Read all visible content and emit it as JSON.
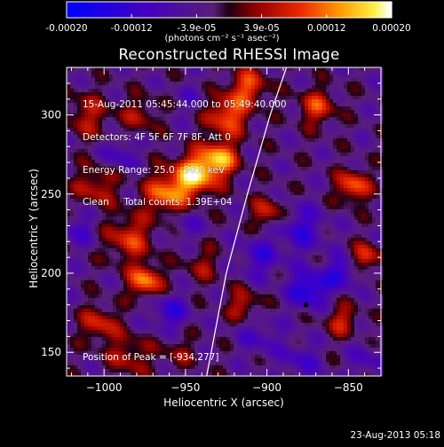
{
  "chart_data": {
    "type": "heatmap",
    "title": "Reconstructed RHESSI Image",
    "xlabel": "Heliocentric X (arcsec)",
    "ylabel": "Heliocentric Y (arcsec)",
    "xlim": [
      -1023,
      -830
    ],
    "ylim": [
      135,
      330
    ],
    "xticks": [
      -1000,
      -950,
      -900,
      -850
    ],
    "yticks": [
      150,
      200,
      250,
      300
    ],
    "colorbar": {
      "ticks": [
        "-0.00020",
        "-0.00012",
        "-3.9e-05",
        "3.9e-05",
        "0.00012",
        "0.00020"
      ],
      "units": "(photons cm⁻² s⁻¹ asec⁻²)",
      "range": [
        -0.0002,
        0.0002
      ]
    },
    "info_lines": [
      "15-Aug-2011 05:45:44.000 to 05:49:40.000",
      "Detectors: 4F 5F 6F 7F 8F, Att 0",
      "Energy Range: 25.0 - 50.0 keV",
      "Clean     Total counts: 1.39E+04"
    ],
    "peak_label": "Position of Peak = [-934,277]",
    "peak": [
      -934,
      277
    ],
    "marker": [
      -876,
      180
    ],
    "limb": [
      [
        -937,
        135
      ],
      [
        -925,
        200
      ],
      [
        -912,
        250
      ],
      [
        -898,
        300
      ],
      [
        -888,
        330
      ]
    ],
    "blobs": [
      {
        "x": -945,
        "y": 262,
        "v": 0.00019,
        "s": 9
      },
      {
        "x": -930,
        "y": 272,
        "v": 0.00017,
        "s": 8
      },
      {
        "x": -962,
        "y": 250,
        "v": 0.00015,
        "s": 9
      },
      {
        "x": -925,
        "y": 300,
        "v": 0.00014,
        "s": 9
      },
      {
        "x": -912,
        "y": 318,
        "v": 0.00012,
        "s": 8
      },
      {
        "x": -985,
        "y": 222,
        "v": 0.00011,
        "s": 10
      },
      {
        "x": -975,
        "y": 195,
        "v": 0.00016,
        "s": 7
      },
      {
        "x": -1003,
        "y": 168,
        "v": 0.0001,
        "s": 8
      },
      {
        "x": -1010,
        "y": 300,
        "v": 8e-05,
        "s": 10
      },
      {
        "x": -1005,
        "y": 255,
        "v": 9e-05,
        "s": 9
      },
      {
        "x": -978,
        "y": 300,
        "v": 7e-05,
        "s": 8
      },
      {
        "x": -940,
        "y": 205,
        "v": 6e-05,
        "s": 8
      },
      {
        "x": -915,
        "y": 180,
        "v": 9e-05,
        "s": 7
      },
      {
        "x": -900,
        "y": 238,
        "v": 0.0001,
        "s": 7
      },
      {
        "x": -870,
        "y": 305,
        "v": 0.00011,
        "s": 8
      },
      {
        "x": -848,
        "y": 255,
        "v": 0.00014,
        "s": 7
      },
      {
        "x": -840,
        "y": 210,
        "v": 0.00012,
        "s": 6
      },
      {
        "x": -855,
        "y": 170,
        "v": 9e-05,
        "s": 7
      },
      {
        "x": -985,
        "y": 148,
        "v": 8e-05,
        "s": 9
      },
      {
        "x": -955,
        "y": 150,
        "v": 5e-05,
        "s": 8
      },
      {
        "x": -880,
        "y": 228,
        "v": -9e-05,
        "s": 10
      },
      {
        "x": -875,
        "y": 190,
        "v": -0.00014,
        "s": 8
      },
      {
        "x": -855,
        "y": 200,
        "v": -0.0001,
        "s": 7
      },
      {
        "x": -905,
        "y": 210,
        "v": -8e-05,
        "s": 9
      },
      {
        "x": -960,
        "y": 175,
        "v": -9e-05,
        "s": 8
      },
      {
        "x": -1015,
        "y": 228,
        "v": -6e-05,
        "s": 8
      },
      {
        "x": -990,
        "y": 275,
        "v": -7e-05,
        "s": 7
      },
      {
        "x": -950,
        "y": 230,
        "v": -5e-05,
        "s": 7
      },
      {
        "x": -905,
        "y": 160,
        "v": -6e-05,
        "s": 9
      },
      {
        "x": -945,
        "y": 310,
        "v": -4e-05,
        "s": 7
      },
      {
        "x": -880,
        "y": 145,
        "v": -7e-05,
        "s": 8
      },
      {
        "x": -840,
        "y": 145,
        "v": -6e-05,
        "s": 7
      }
    ]
  },
  "footer": {
    "datestamp": "23-Aug-2013 05:18"
  }
}
